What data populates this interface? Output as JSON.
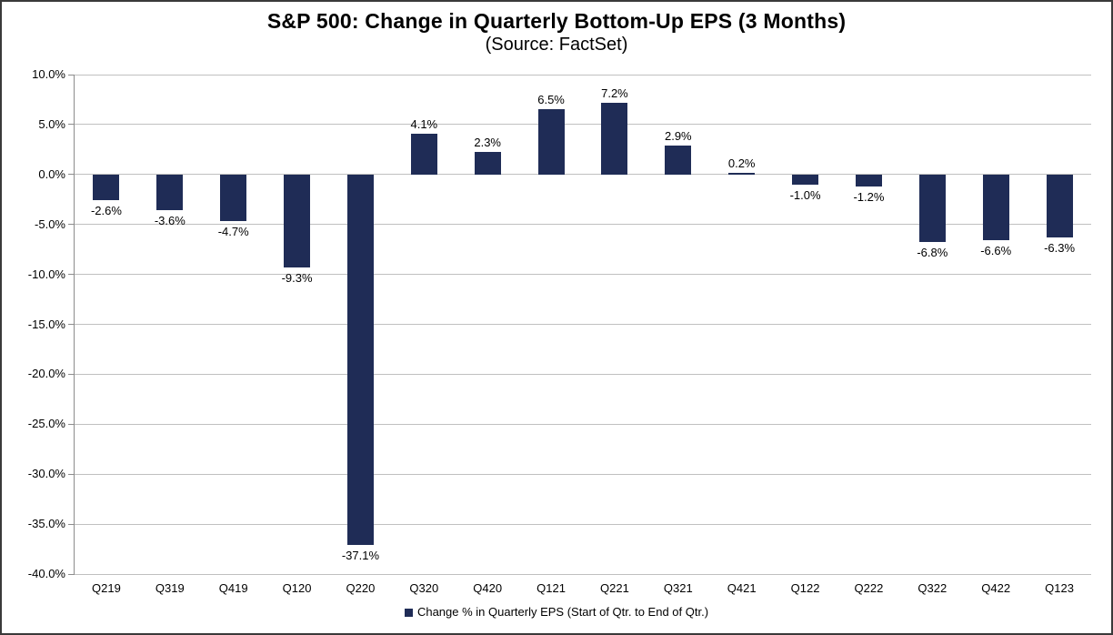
{
  "chart_data": {
    "type": "bar",
    "title": "S&P 500: Change in Quarterly Bottom-Up EPS (3 Months)",
    "subtitle": "(Source: FactSet)",
    "categories": [
      "Q219",
      "Q319",
      "Q419",
      "Q120",
      "Q220",
      "Q320",
      "Q420",
      "Q121",
      "Q221",
      "Q321",
      "Q421",
      "Q122",
      "Q222",
      "Q322",
      "Q422",
      "Q123"
    ],
    "values": [
      -2.6,
      -3.6,
      -4.7,
      -9.3,
      -37.1,
      4.1,
      2.3,
      6.5,
      7.2,
      2.9,
      0.2,
      -1.0,
      -1.2,
      -6.8,
      -6.6,
      -6.3
    ],
    "value_labels": [
      "-2.6%",
      "-3.6%",
      "-4.7%",
      "-9.3%",
      "-37.1%",
      "4.1%",
      "2.3%",
      "6.5%",
      "7.2%",
      "2.9%",
      "0.2%",
      "-1.0%",
      "-1.2%",
      "-6.8%",
      "-6.6%",
      "-6.3%"
    ],
    "xlabel": "",
    "ylabel": "",
    "ylim": [
      -40,
      10
    ],
    "ytick_values": [
      10,
      5,
      0,
      -5,
      -10,
      -15,
      -20,
      -25,
      -30,
      -35,
      -40
    ],
    "ytick_labels": [
      "10.0%",
      "5.0%",
      "0.0%",
      "-5.0%",
      "-10.0%",
      "-15.0%",
      "-20.0%",
      "-25.0%",
      "-30.0%",
      "-35.0%",
      "-40.0%"
    ],
    "grid": true,
    "legend": {
      "position": "bottom",
      "label": "Change % in Quarterly EPS (Start of Qtr. to End of Qtr.)"
    },
    "colors": {
      "bar": "#1F2C56",
      "gridline": "#C0C0C0",
      "axis": "#8C8C8C",
      "text": "#000000",
      "background": "#FFFFFF",
      "border": "#3A3A3A"
    }
  }
}
